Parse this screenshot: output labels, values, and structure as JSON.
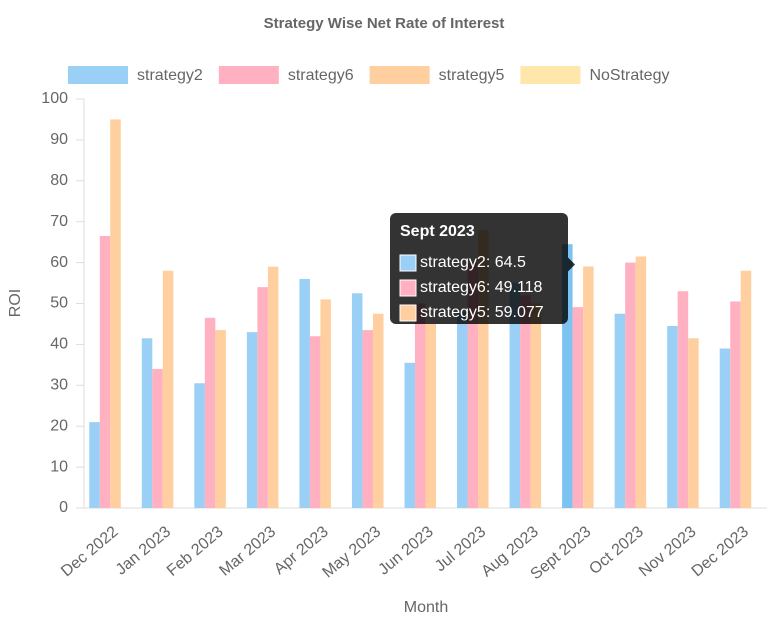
{
  "chart_data": {
    "type": "bar",
    "title": "Strategy Wise Net Rate of Interest",
    "x_label": "Month",
    "y_label": "ROI",
    "categories": [
      "Dec 2022",
      "Jan 2023",
      "Feb 2023",
      "Mar 2023",
      "Apr 2023",
      "May 2023",
      "Jun 2023",
      "Jul 2023",
      "Aug 2023",
      "Sept 2023",
      "Oct 2023",
      "Nov 2023",
      "Dec 2023"
    ],
    "series": [
      {
        "name": "strategy2",
        "color": "#9ad0f5",
        "values": [
          21,
          41.5,
          30.5,
          43,
          56,
          52.5,
          35.5,
          48,
          55,
          64.5,
          47.5,
          44.5,
          39
        ]
      },
      {
        "name": "strategy6",
        "color": "#ffb1c1",
        "values": [
          66.5,
          34,
          46.5,
          54,
          42,
          43.5,
          50,
          60,
          52,
          49.118,
          60,
          53,
          50.5
        ]
      },
      {
        "name": "strategy5",
        "color": "#ffcf9f",
        "values": [
          95,
          58,
          43.5,
          59,
          51,
          47.5,
          45,
          68,
          50,
          59.077,
          61.5,
          41.5,
          58
        ]
      },
      {
        "name": "NoStrategy",
        "color": "#ffe6aa",
        "values": [
          null,
          null,
          null,
          null,
          null,
          null,
          null,
          null,
          null,
          null,
          null,
          null,
          null
        ]
      }
    ],
    "ylim": [
      0,
      100
    ],
    "yticks": [
      0,
      10,
      20,
      30,
      40,
      50,
      60,
      70,
      80,
      90,
      100
    ],
    "grid": false,
    "legend": "top",
    "tooltip_index": 9
  }
}
